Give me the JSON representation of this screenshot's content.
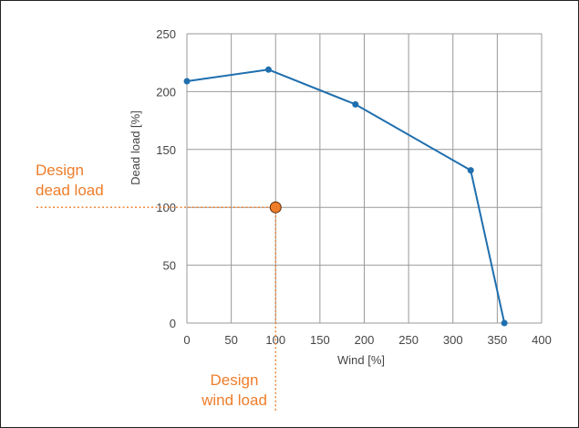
{
  "chart_data": {
    "type": "line",
    "title": "",
    "xlabel": "Wind [%]",
    "ylabel": "Dead load [%]",
    "xlim": [
      0,
      400
    ],
    "ylim": [
      0,
      250
    ],
    "x_ticks": [
      0,
      50,
      100,
      150,
      200,
      250,
      300,
      350,
      400
    ],
    "y_ticks": [
      0,
      50,
      100,
      150,
      200,
      250
    ],
    "grid": true,
    "series": [
      {
        "x": [
          0,
          92,
          190,
          320,
          358
        ],
        "y": [
          209,
          219,
          189,
          132,
          0
        ]
      }
    ],
    "design_point": {
      "x": 100,
      "y": 100
    },
    "annotations": {
      "dead_load": [
        "Design",
        "dead load"
      ],
      "wind_load": [
        "Design",
        "wind load"
      ]
    },
    "colors": {
      "line": "#1f6fae",
      "marker": "#1f6fae",
      "design_point": "#ee7d2a",
      "annotation": "#ee7d2a",
      "grid": "#999999"
    }
  }
}
